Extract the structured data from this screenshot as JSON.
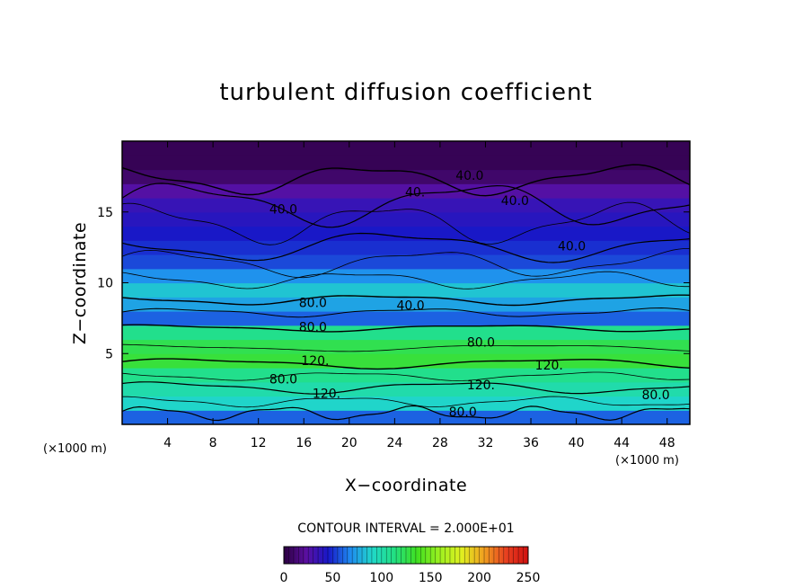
{
  "chart_data": {
    "type": "heatmap",
    "title": "turbulent diffusion coefficient",
    "xlabel": "X−coordinate",
    "ylabel": "Z−coordinate",
    "x_unit_label": "(×1000 m)",
    "y_unit_label": "(×1000 m)",
    "xlim": [
      0,
      50
    ],
    "ylim": [
      0,
      20
    ],
    "x_ticks": [
      4,
      8,
      12,
      16,
      20,
      24,
      28,
      32,
      36,
      40,
      44,
      48
    ],
    "y_ticks": [
      5,
      10,
      15
    ],
    "contour_interval_label": "CONTOUR INTERVAL = 2.000E+01",
    "colorbar": {
      "min": 0,
      "max": 250,
      "ticks": [
        0,
        50,
        100,
        150,
        200,
        250
      ],
      "colors": [
        "#2b0040",
        "#5b0fa0",
        "#1818c8",
        "#1f8cf0",
        "#20d8c8",
        "#22e080",
        "#40e020",
        "#9cf020",
        "#e0f020",
        "#f0a020",
        "#e84020",
        "#d01010"
      ]
    },
    "bands": [
      {
        "z": 0.5,
        "value": 60
      },
      {
        "z": 1.5,
        "value": 90
      },
      {
        "z": 2.5,
        "value": 100
      },
      {
        "z": 3.5,
        "value": 110
      },
      {
        "z": 4.5,
        "value": 130
      },
      {
        "z": 5.5,
        "value": 125
      },
      {
        "z": 6.5,
        "value": 110
      },
      {
        "z": 7.5,
        "value": 60
      },
      {
        "z": 8.5,
        "value": 75
      },
      {
        "z": 9.5,
        "value": 85
      },
      {
        "z": 10.5,
        "value": 70
      },
      {
        "z": 11.5,
        "value": 55
      },
      {
        "z": 12.5,
        "value": 50
      },
      {
        "z": 13.5,
        "value": 45
      },
      {
        "z": 14.5,
        "value": 40
      },
      {
        "z": 15.5,
        "value": 35
      },
      {
        "z": 16.5,
        "value": 25
      },
      {
        "z": 17.5,
        "value": 10
      },
      {
        "z": 18.5,
        "value": 5
      },
      {
        "z": 19.5,
        "value": 5
      }
    ],
    "contour_labels": [
      {
        "x": 30.6,
        "z": 17.6,
        "text": "40.0"
      },
      {
        "x": 25.8,
        "z": 16.4,
        "text": "40."
      },
      {
        "x": 34.6,
        "z": 15.8,
        "text": "40.0"
      },
      {
        "x": 14.2,
        "z": 15.2,
        "text": "40.0"
      },
      {
        "x": 39.6,
        "z": 12.6,
        "text": "40.0"
      },
      {
        "x": 16.8,
        "z": 8.6,
        "text": "80.0"
      },
      {
        "x": 25.4,
        "z": 8.4,
        "text": "40.0"
      },
      {
        "x": 16.8,
        "z": 6.9,
        "text": "80.0"
      },
      {
        "x": 31.6,
        "z": 5.8,
        "text": "80.0"
      },
      {
        "x": 17.0,
        "z": 4.5,
        "text": "120."
      },
      {
        "x": 37.6,
        "z": 4.2,
        "text": "120."
      },
      {
        "x": 14.2,
        "z": 3.2,
        "text": "80.0"
      },
      {
        "x": 18.0,
        "z": 2.2,
        "text": "120."
      },
      {
        "x": 31.6,
        "z": 2.8,
        "text": "120."
      },
      {
        "x": 47.0,
        "z": 2.1,
        "text": "80.0"
      },
      {
        "x": 30.0,
        "z": 0.9,
        "text": "80.0"
      }
    ]
  }
}
